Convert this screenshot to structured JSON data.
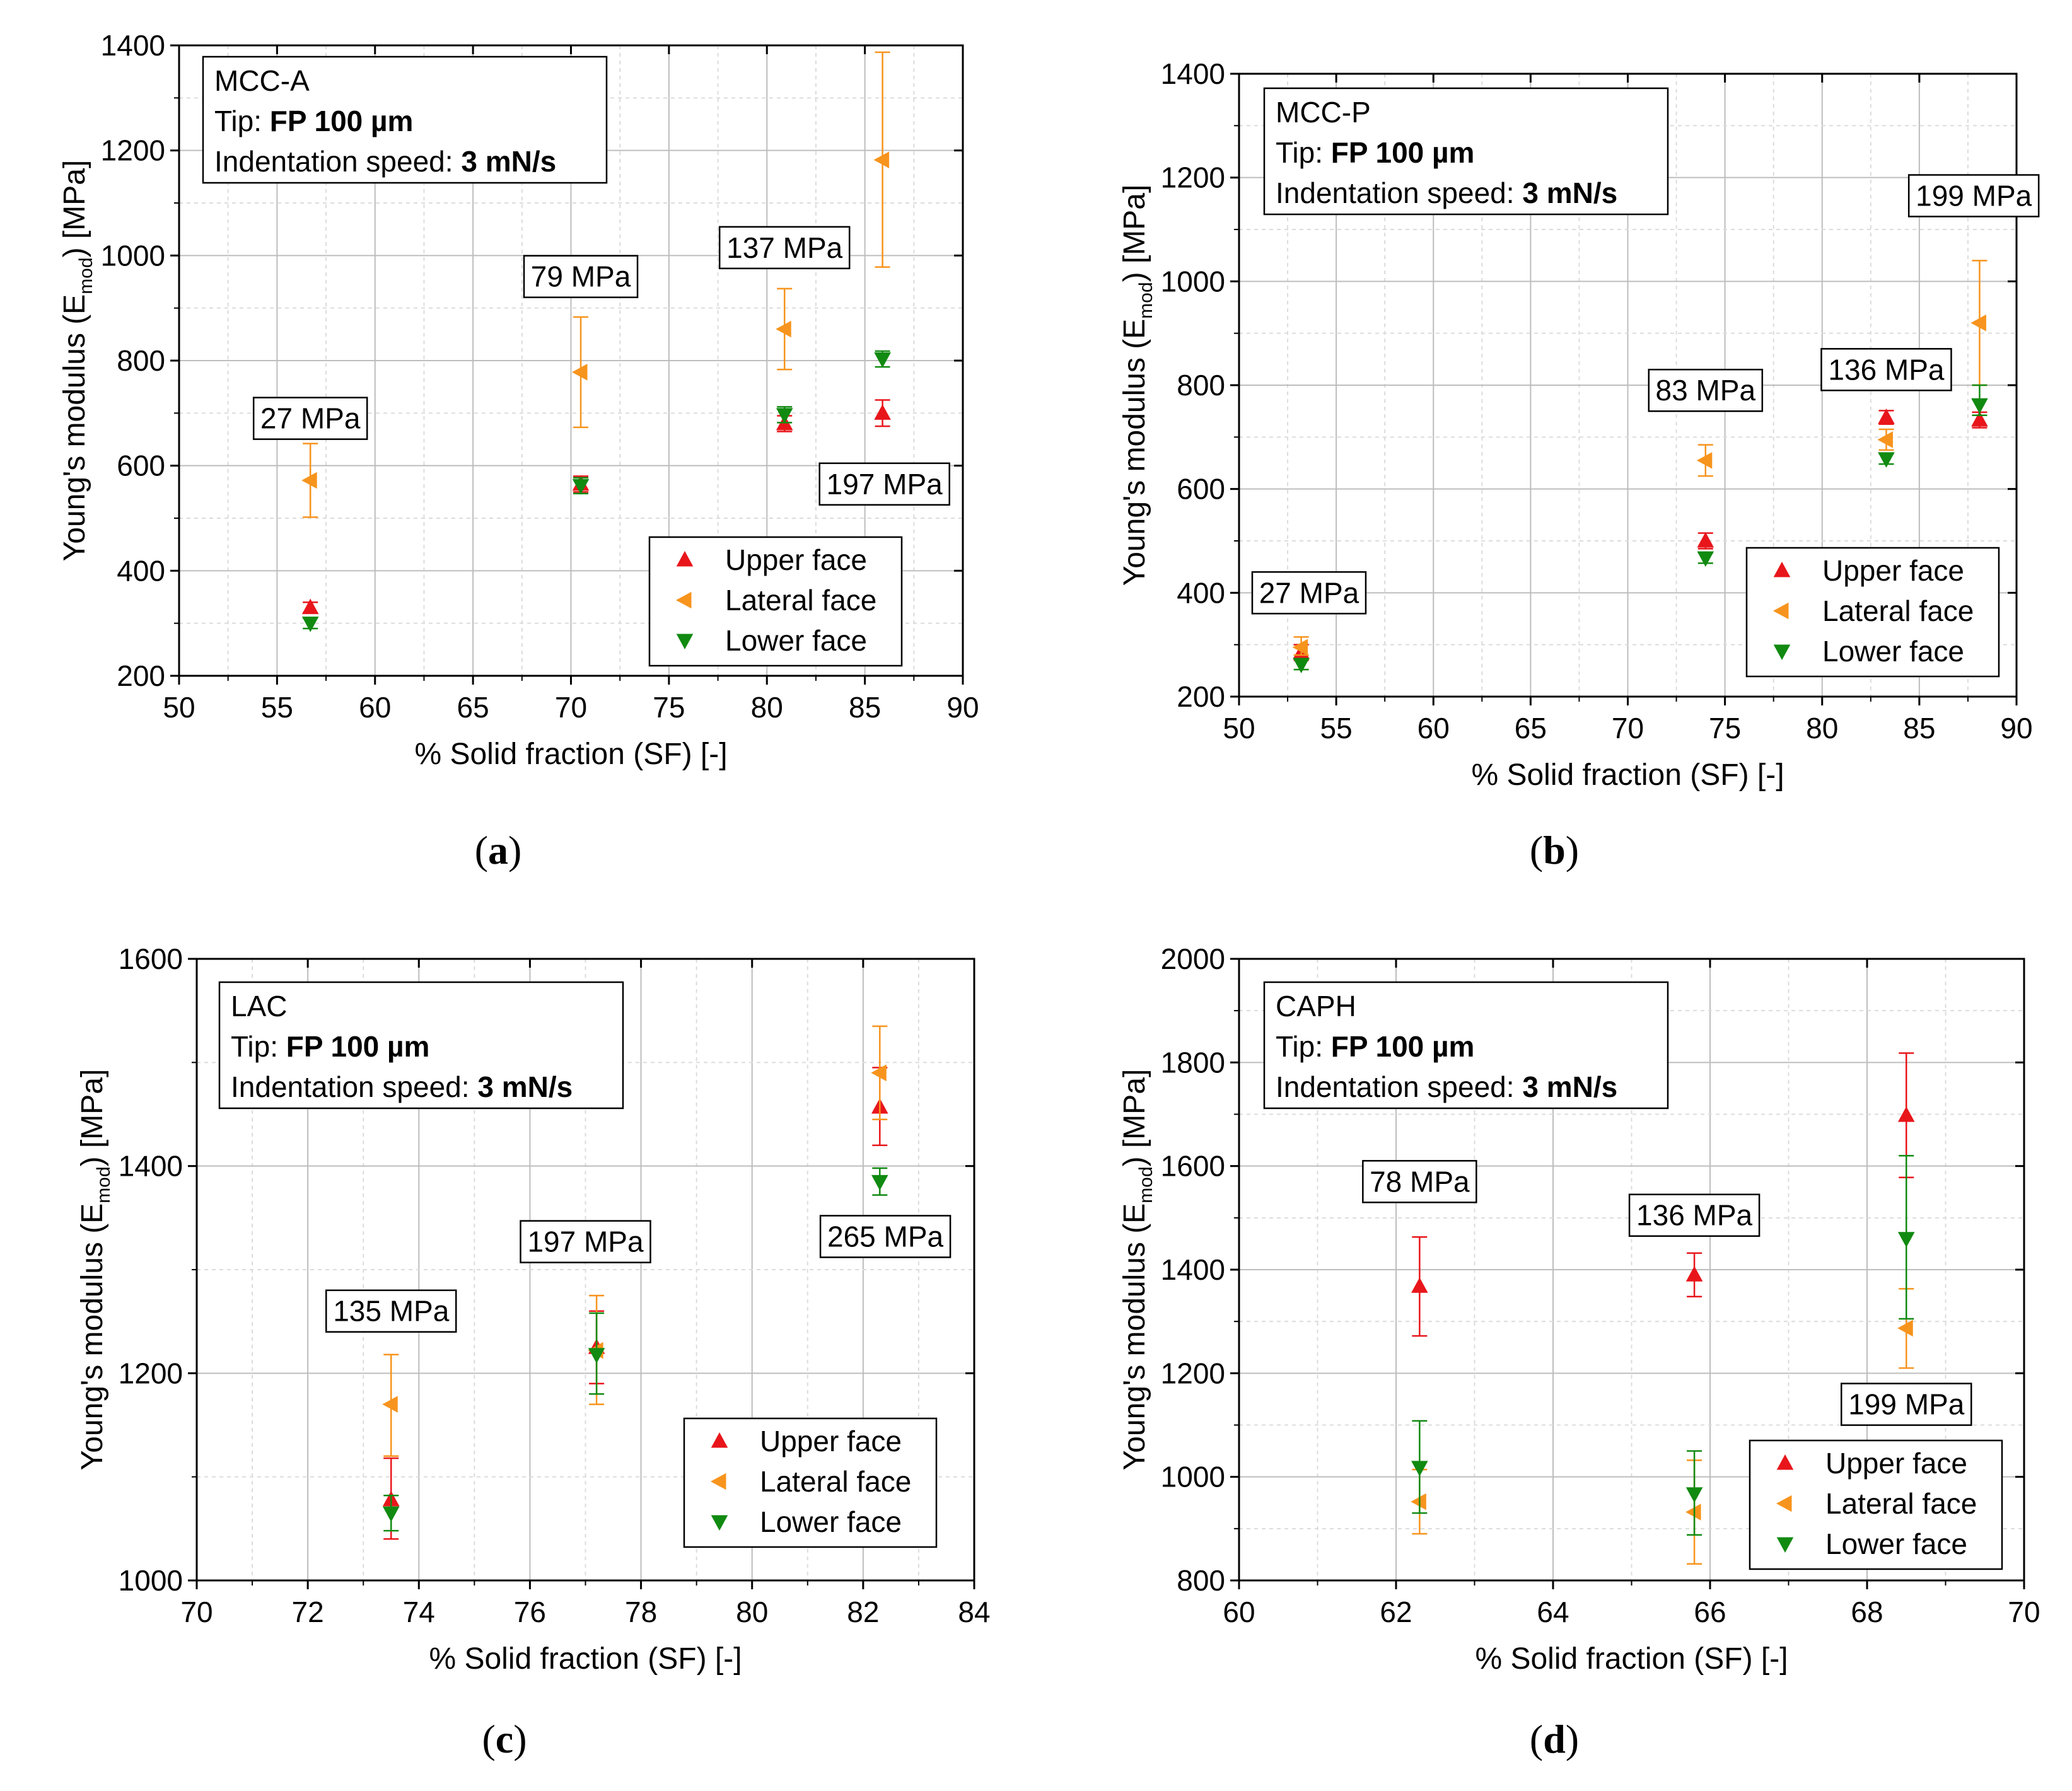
{
  "colors": {
    "upper": "#e8161b",
    "lateral": "#f7941d",
    "lower": "#118a11",
    "grid": "#c8c8c8",
    "axis": "#000000"
  },
  "chart_data": [
    {
      "id": "a",
      "type": "scatter",
      "letter": "(a)",
      "xlabel": "% Solid fraction (SF) [-]",
      "ylabel_parts": [
        "Young's modulus (E",
        "mod",
        ") [MPa]"
      ],
      "xlim": [
        50,
        90
      ],
      "ylim": [
        200,
        1400
      ],
      "grid": true,
      "xticks": [
        50,
        55,
        60,
        65,
        70,
        75,
        80,
        85,
        90
      ],
      "yticks": [
        200,
        400,
        600,
        800,
        1000,
        1200,
        1400
      ],
      "info": {
        "material": "MCC-A",
        "tip_prefix": "Tip: ",
        "tip_value": "FP 100 µm",
        "speed_prefix": "Indentation speed: ",
        "speed_value": "3 mN/s"
      },
      "series": [
        {
          "name": "Upper face",
          "marker": "up",
          "points": [
            [
              56.7,
              330,
              320,
              340
            ],
            [
              70.5,
              565,
              550,
              580
            ],
            [
              80.9,
              680,
              665,
              695
            ],
            [
              85.9,
              700,
              675,
              725
            ]
          ]
        },
        {
          "name": "Lateral face",
          "marker": "left",
          "points": [
            [
              56.7,
              572,
              502,
              642
            ],
            [
              70.5,
              778,
              673,
              883
            ],
            [
              80.9,
              860,
              783,
              937
            ],
            [
              85.9,
              1182,
              978,
              1387
            ]
          ]
        },
        {
          "name": "Lower face",
          "marker": "down",
          "points": [
            [
              56.7,
              300,
              290,
              310
            ],
            [
              70.5,
              562,
              547,
              577
            ],
            [
              80.9,
              697,
              682,
              712
            ],
            [
              85.9,
              803,
              788,
              818
            ]
          ]
        }
      ],
      "annotations": [
        {
          "text": "27 MPa",
          "x": 56.7,
          "y": 690
        },
        {
          "text": "79 MPa",
          "x": 70.5,
          "y": 960
        },
        {
          "text": "137 MPa",
          "x": 80.9,
          "y": 1015
        },
        {
          "text": "197 MPa",
          "x": 86.0,
          "y": 565
        }
      ],
      "legend": "bottom-right"
    },
    {
      "id": "b",
      "type": "scatter",
      "letter": "(b)",
      "xlabel": "% Solid fraction (SF) [-]",
      "ylabel_parts": [
        "Young's modulus (E",
        "mod",
        ") [MPa]"
      ],
      "xlim": [
        50,
        90
      ],
      "ylim": [
        200,
        1400
      ],
      "grid": true,
      "xticks": [
        50,
        55,
        60,
        65,
        70,
        75,
        80,
        85,
        90
      ],
      "yticks": [
        200,
        400,
        600,
        800,
        1000,
        1200,
        1400
      ],
      "info": {
        "material": "MCC-P",
        "tip_prefix": "Tip: ",
        "tip_value": "FP 100 µm",
        "speed_prefix": "Indentation speed: ",
        "speed_value": "3 mN/s"
      },
      "series": [
        {
          "name": "Upper face",
          "marker": "up",
          "points": [
            [
              53.2,
              285,
              270,
              300
            ],
            [
              74.0,
              500,
              485,
              515
            ],
            [
              83.3,
              738,
              725,
              751
            ],
            [
              88.1,
              733,
              718,
              748
            ]
          ]
        },
        {
          "name": "Lateral face",
          "marker": "left",
          "points": [
            [
              53.2,
              295,
              280,
              315
            ],
            [
              74.0,
              655,
              625,
              685
            ],
            [
              83.3,
              695,
              675,
              715
            ],
            [
              88.1,
              920,
              800,
              1040
            ]
          ]
        },
        {
          "name": "Lower face",
          "marker": "down",
          "points": [
            [
              53.2,
              262,
              252,
              272
            ],
            [
              74.0,
              467,
              457,
              477
            ],
            [
              83.3,
              658,
              648,
              668
            ],
            [
              88.1,
              762,
              742,
              800
            ]
          ]
        }
      ],
      "annotations": [
        {
          "text": "27 MPa",
          "x": 53.6,
          "y": 400
        },
        {
          "text": "83 MPa",
          "x": 74.0,
          "y": 790
        },
        {
          "text": "136 MPa",
          "x": 83.3,
          "y": 830
        },
        {
          "text": "199 MPa",
          "x": 87.8,
          "y": 1165
        }
      ],
      "legend": "bottom-right"
    },
    {
      "id": "c",
      "type": "scatter",
      "letter": "(c)",
      "xlabel": "% Solid fraction (SF) [-]",
      "ylabel_parts": [
        "Young's modulus (E",
        "mod",
        ") [MPa]"
      ],
      "xlim": [
        70,
        84
      ],
      "ylim": [
        1000,
        1600
      ],
      "grid": true,
      "xticks": [
        70,
        72,
        74,
        76,
        78,
        80,
        82,
        84
      ],
      "yticks": [
        1000,
        1200,
        1400,
        1600
      ],
      "info": {
        "material": "LAC",
        "tip_prefix": "Tip: ",
        "tip_value": "FP 100 µm",
        "speed_prefix": "Indentation speed: ",
        "speed_value": "3 mN/s"
      },
      "series": [
        {
          "name": "Upper face",
          "marker": "up",
          "points": [
            [
              73.5,
              1078,
              1040,
              1118
            ],
            [
              77.2,
              1225,
              1190,
              1260
            ],
            [
              82.3,
              1457,
              1420,
              1495
            ]
          ]
        },
        {
          "name": "Lateral face",
          "marker": "left",
          "points": [
            [
              73.5,
              1170,
              1120,
              1218
            ],
            [
              77.2,
              1222,
              1170,
              1275
            ],
            [
              82.3,
              1490,
              1445,
              1535
            ]
          ]
        },
        {
          "name": "Lower face",
          "marker": "down",
          "points": [
            [
              73.5,
              1065,
              1048,
              1082
            ],
            [
              77.2,
              1218,
              1180,
              1258
            ],
            [
              82.3,
              1385,
              1372,
              1398
            ]
          ]
        }
      ],
      "annotations": [
        {
          "text": "135 MPa",
          "x": 73.5,
          "y": 1260
        },
        {
          "text": "197 MPa",
          "x": 77.0,
          "y": 1327
        },
        {
          "text": "265 MPa",
          "x": 82.4,
          "y": 1332
        }
      ],
      "legend": "bottom-right"
    },
    {
      "id": "d",
      "type": "scatter",
      "letter": "(d)",
      "xlabel": "% Solid fraction (SF) [-]",
      "ylabel_parts": [
        "Young's modulus (E",
        "mod",
        ") [MPa]"
      ],
      "xlim": [
        60,
        70
      ],
      "ylim": [
        800,
        2000
      ],
      "grid": true,
      "xticks": [
        60,
        62,
        64,
        66,
        68,
        70
      ],
      "yticks": [
        800,
        1000,
        1200,
        1400,
        1600,
        1800,
        2000
      ],
      "info": {
        "material": "CAPH",
        "tip_prefix": "Tip: ",
        "tip_value": "FP 100 µm",
        "speed_prefix": "Indentation speed: ",
        "speed_value": "3 mN/s"
      },
      "series": [
        {
          "name": "Upper face",
          "marker": "up",
          "points": [
            [
              62.3,
              1368,
              1272,
              1463
            ],
            [
              65.8,
              1390,
              1348,
              1432
            ],
            [
              68.5,
              1698,
              1578,
              1818
            ]
          ]
        },
        {
          "name": "Lateral face",
          "marker": "left",
          "points": [
            [
              62.3,
              952,
              890,
              1014
            ],
            [
              65.8,
              932,
              832,
              1032
            ],
            [
              68.5,
              1287,
              1210,
              1363
            ]
          ]
        },
        {
          "name": "Lower face",
          "marker": "down",
          "points": [
            [
              62.3,
              1018,
              930,
              1108
            ],
            [
              65.8,
              967,
              888,
              1050
            ],
            [
              68.5,
              1460,
              1305,
              1620
            ]
          ]
        }
      ],
      "annotations": [
        {
          "text": "78 MPa",
          "x": 62.3,
          "y": 1570
        },
        {
          "text": "136 MPa",
          "x": 65.8,
          "y": 1505
        },
        {
          "text": "199 MPa",
          "x": 68.5,
          "y": 1140
        }
      ],
      "legend": "bottom-right"
    }
  ]
}
